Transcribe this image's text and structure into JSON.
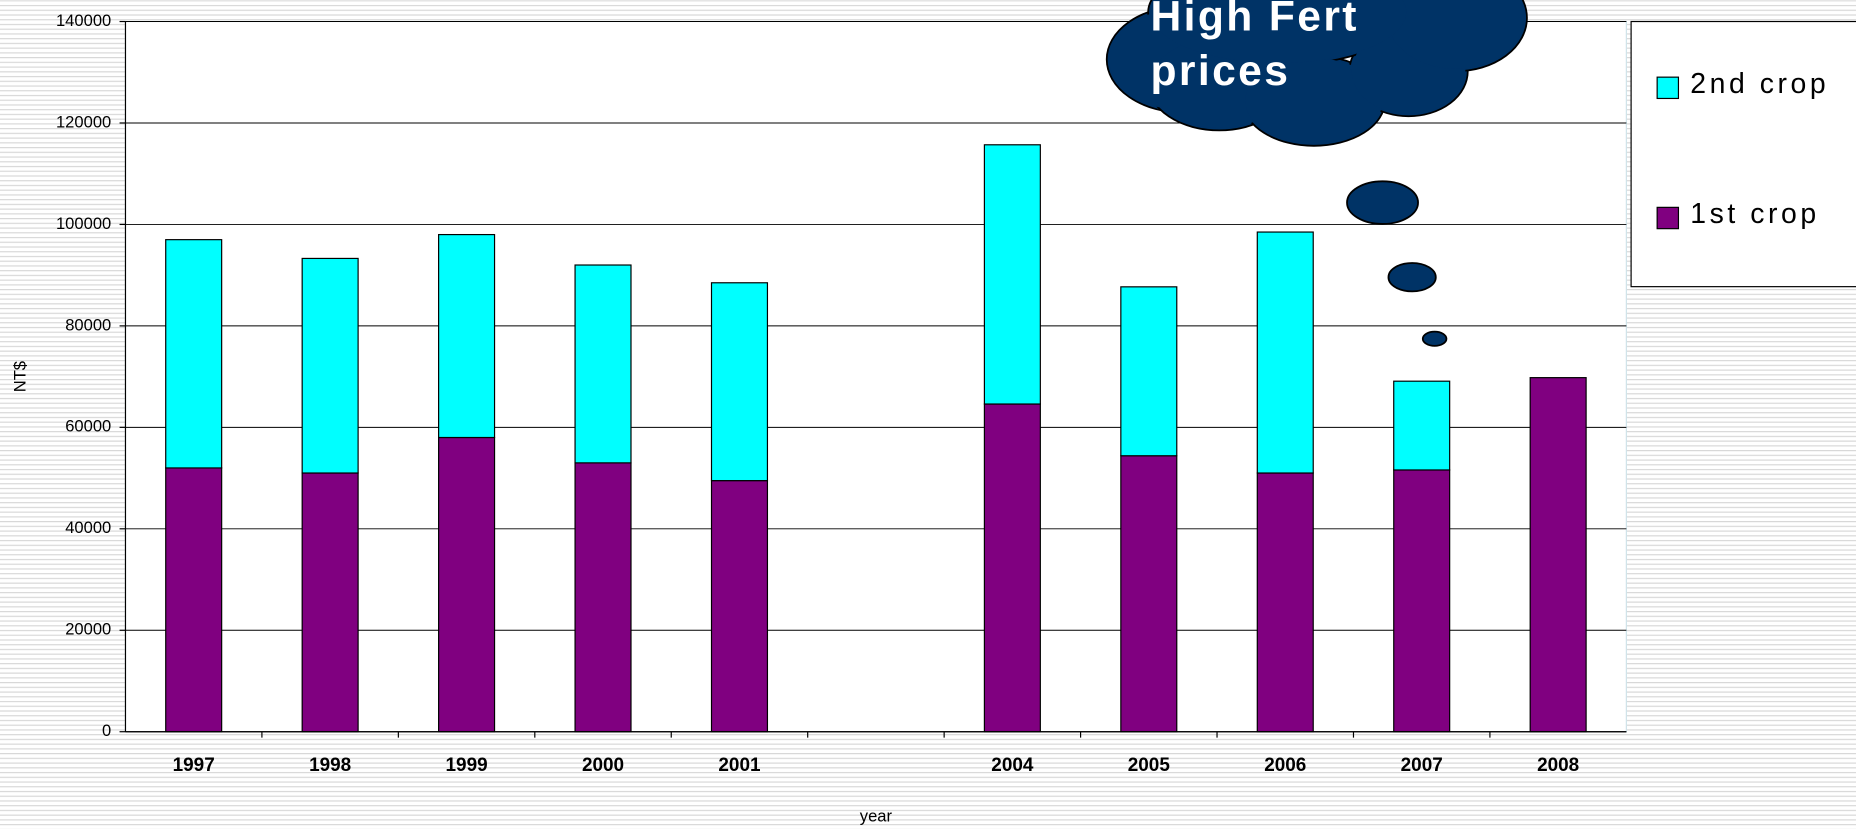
{
  "chart_data": {
    "type": "stacked_bar",
    "y_label": "NT$",
    "x_label": "year",
    "annotation": [
      "High Fert",
      "prices"
    ],
    "categories": [
      "1997",
      "1998",
      "1999",
      "2000",
      "2001",
      null,
      "2004",
      "2005",
      "2006",
      "2007",
      "2008"
    ],
    "series": [
      {
        "name": "1st crop",
        "color": "#800080",
        "values": [
          52000,
          51000,
          58000,
          53000,
          49500,
          null,
          64600,
          54400,
          51000,
          51600,
          69800
        ]
      },
      {
        "name": "2nd crop",
        "color": "#00ffff",
        "values": [
          45000,
          42300,
          40000,
          39000,
          39000,
          null,
          51100,
          33300,
          47500,
          17500,
          0
        ]
      }
    ],
    "ylim": [
      0,
      140000
    ],
    "yticks": [
      0,
      20000,
      40000,
      60000,
      80000,
      100000,
      120000,
      140000
    ],
    "grid": true,
    "legend": "right"
  }
}
